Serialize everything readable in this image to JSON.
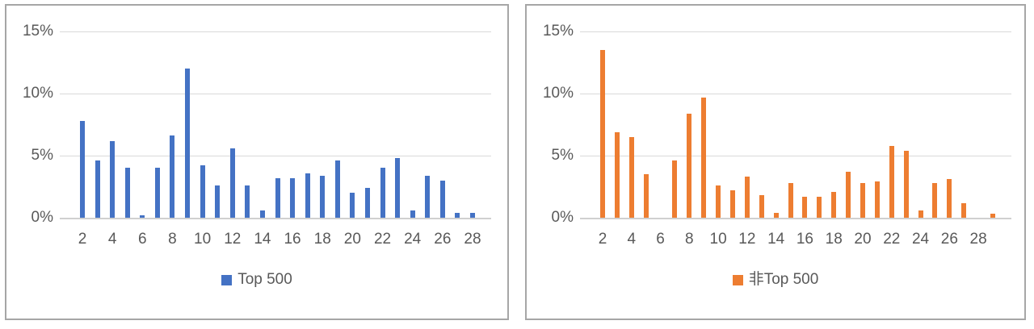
{
  "colors": {
    "blue": "#4472C4",
    "orange": "#ED7D31",
    "gridline": "#D9D9D9",
    "axis_text": "#595959",
    "panel_border": "#A6A6A6",
    "background": "#FFFFFF"
  },
  "chart_data": [
    {
      "type": "bar",
      "title": "",
      "legend": "Top 500",
      "legend_position": "bottom",
      "bar_color": "#4472C4",
      "grid": "horizontal",
      "ylim": [
        0,
        15
      ],
      "y_ticks": [
        0,
        5,
        10,
        15
      ],
      "y_tick_labels": [
        "0%",
        "5%",
        "10%",
        "15%"
      ],
      "x": [
        2,
        3,
        4,
        5,
        6,
        7,
        8,
        9,
        10,
        11,
        12,
        13,
        14,
        15,
        16,
        17,
        18,
        19,
        20,
        21,
        22,
        23,
        24,
        25,
        26,
        27,
        28
      ],
      "values": [
        7.8,
        4.6,
        6.2,
        4.0,
        0.2,
        4.0,
        6.6,
        12.0,
        4.2,
        2.6,
        5.6,
        2.6,
        0.6,
        3.2,
        3.2,
        3.6,
        3.4,
        4.6,
        2.0,
        2.4,
        4.0,
        4.8,
        0.6,
        3.4,
        3.0,
        0.4,
        0.4
      ],
      "x_tick_labels": [
        "2",
        "4",
        "6",
        "8",
        "10",
        "12",
        "14",
        "16",
        "18",
        "20",
        "22",
        "24",
        "26",
        "28"
      ]
    },
    {
      "type": "bar",
      "title": "",
      "legend": "非Top 500",
      "legend_position": "bottom",
      "bar_color": "#ED7D31",
      "grid": "horizontal",
      "ylim": [
        0,
        15
      ],
      "y_ticks": [
        0,
        5,
        10,
        15
      ],
      "y_tick_labels": [
        "0%",
        "5%",
        "10%",
        "15%"
      ],
      "x": [
        2,
        3,
        4,
        5,
        6,
        7,
        8,
        9,
        10,
        11,
        12,
        13,
        14,
        15,
        16,
        17,
        18,
        19,
        20,
        21,
        22,
        23,
        24,
        25,
        26,
        27,
        28,
        29
      ],
      "values": [
        13.5,
        6.9,
        6.5,
        3.5,
        0,
        4.6,
        8.4,
        9.7,
        2.6,
        2.2,
        3.3,
        1.8,
        0.4,
        2.8,
        1.7,
        1.7,
        2.1,
        3.7,
        2.8,
        2.9,
        5.8,
        5.4,
        0.6,
        2.8,
        3.1,
        1.2,
        0,
        0.3
      ],
      "x_tick_labels": [
        "2",
        "4",
        "6",
        "8",
        "10",
        "12",
        "14",
        "16",
        "18",
        "20",
        "22",
        "24",
        "26",
        "28"
      ]
    }
  ]
}
